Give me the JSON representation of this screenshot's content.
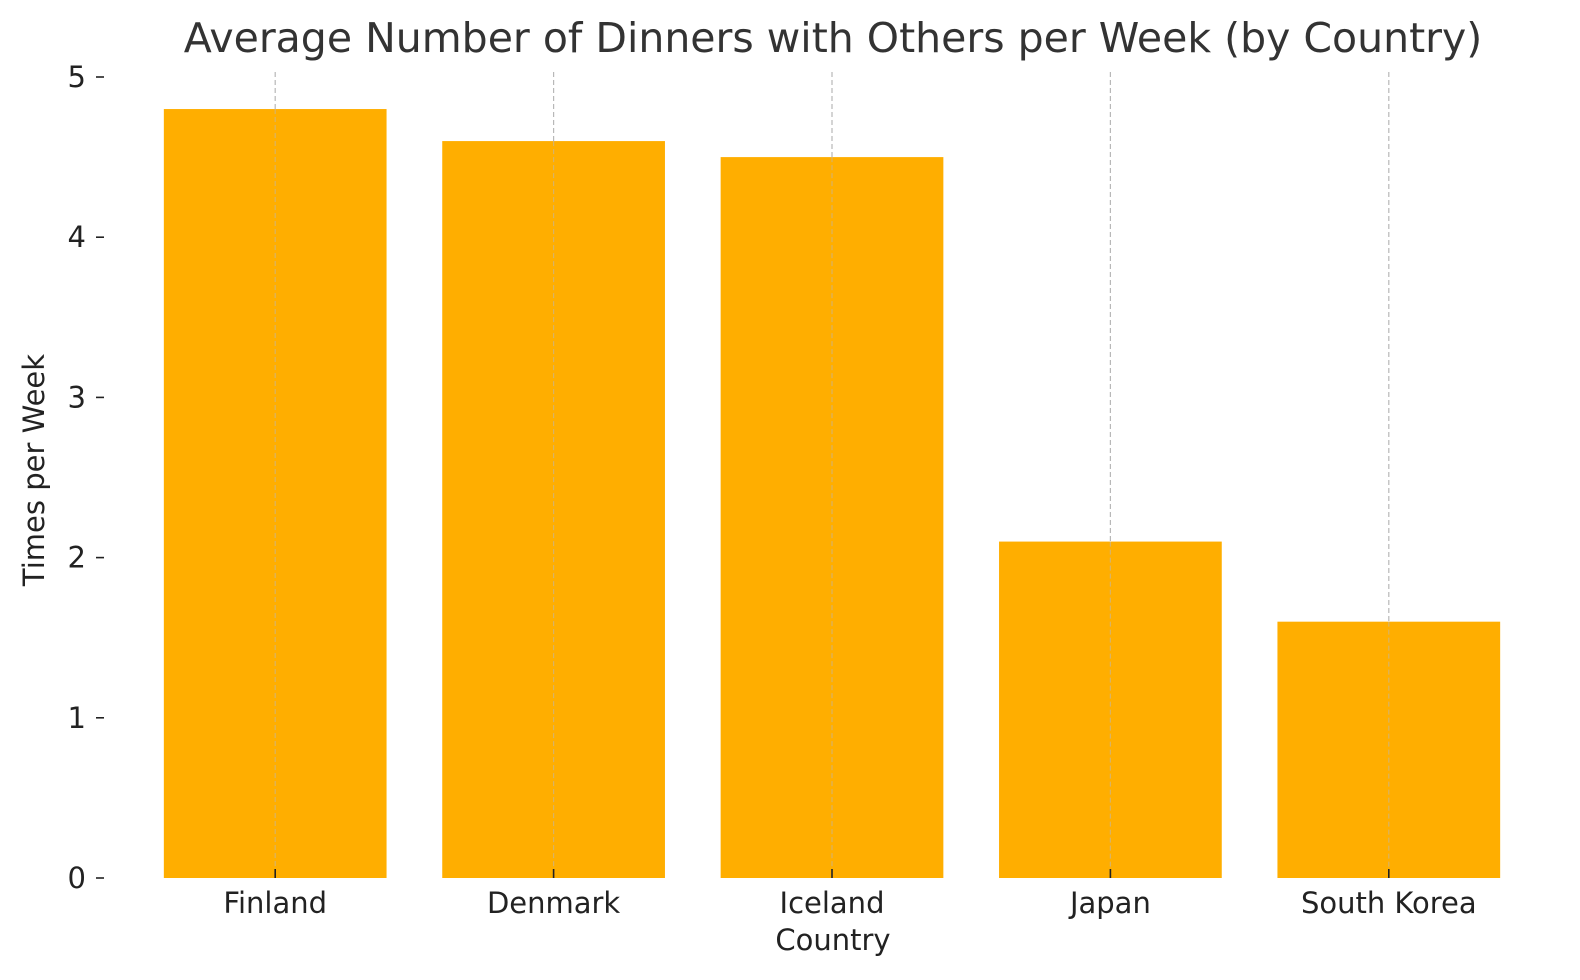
{
  "chart_data": {
    "type": "bar",
    "title": "Average Number of Dinners with Others per Week (by Country)",
    "xlabel": "Country",
    "ylabel": "Times per Week",
    "categories": [
      "Finland",
      "Denmark",
      "Iceland",
      "Japan",
      "South Korea"
    ],
    "values": [
      4.8,
      4.6,
      4.5,
      2.1,
      1.6
    ],
    "ylim": [
      0,
      5
    ],
    "yticks": [
      0,
      1,
      2,
      3,
      4,
      5
    ],
    "grid": "x-dashed",
    "colors": {
      "bar": "#FFAE00",
      "gridline": "#b8b8b8",
      "text": "#222222",
      "title": "#333333"
    }
  }
}
